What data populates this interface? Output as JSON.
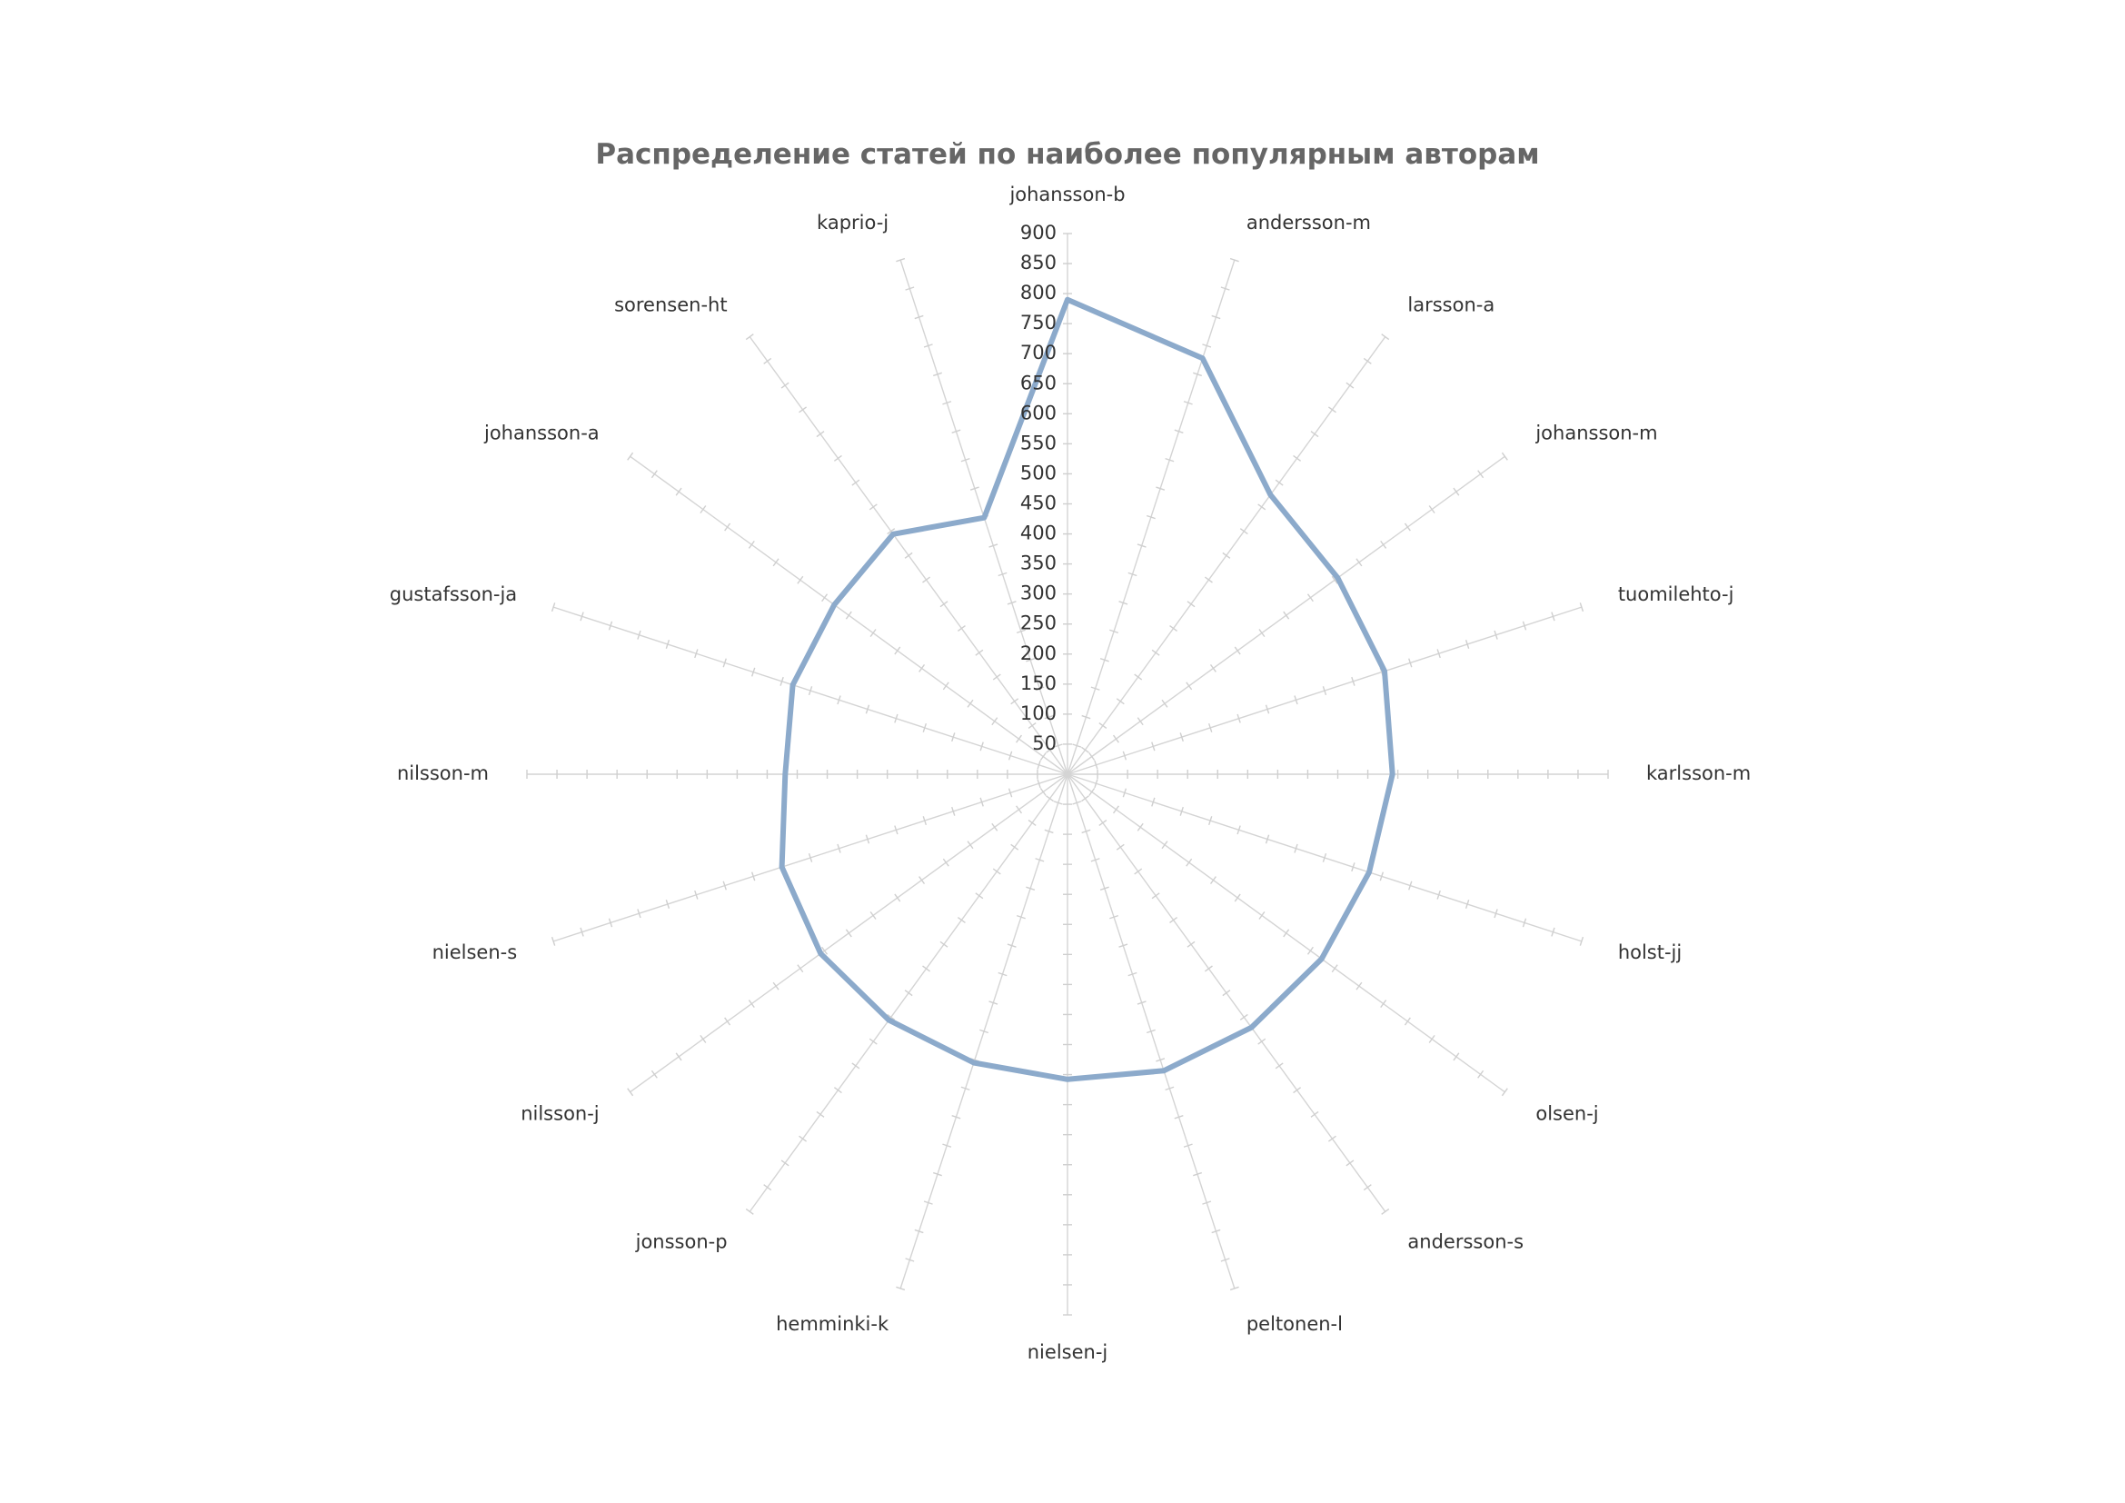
{
  "colors": {
    "series": "#8caacb",
    "background": "#ffffff",
    "title": "#666666",
    "text": "#333333",
    "grid": "#d4d4d4"
  },
  "chart_data": {
    "type": "radar",
    "title": "Распределение статей по наиболее популярным авторам",
    "categories": [
      "johansson-b",
      "andersson-m",
      "larsson-a",
      "johansson-m",
      "tuomilehto-j",
      "karlsson-m",
      "holst-jj",
      "olsen-j",
      "andersson-s",
      "peltonen-l",
      "nielsen-j",
      "hemminki-k",
      "jonsson-p",
      "nilsson-j",
      "nielsen-s",
      "nilsson-m",
      "gustafsson-ja",
      "johansson-a",
      "sorensen-ht",
      "kaprio-j"
    ],
    "series": [
      {
        "values": [
          790,
          728,
          575,
          556,
          555,
          541,
          528,
          523,
          521,
          519,
          508,
          505,
          506,
          508,
          500,
          470,
          481,
          480,
          494,
          449
        ]
      }
    ],
    "radial_axis": {
      "min": 0,
      "max": 900,
      "ticks": [
        50,
        100,
        150,
        200,
        250,
        300,
        350,
        400,
        450,
        500,
        550,
        600,
        650,
        700,
        750,
        800,
        850,
        900
      ]
    },
    "grid": "spokes-only",
    "legend": "none"
  }
}
